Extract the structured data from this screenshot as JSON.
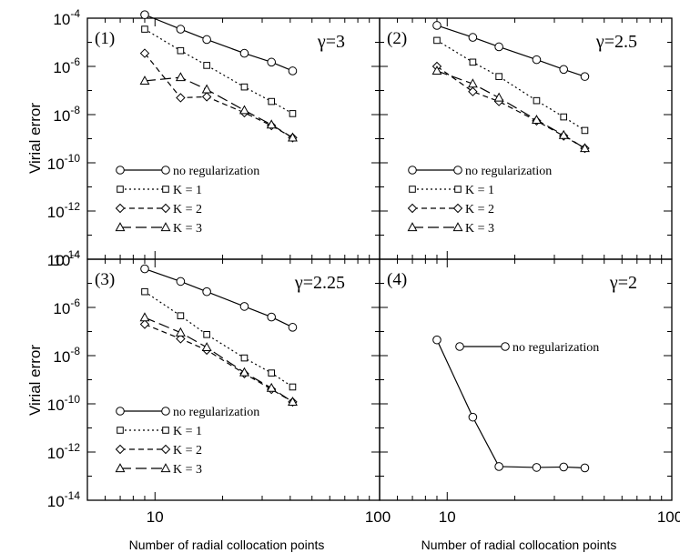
{
  "figure": {
    "ylabel": "Virial error",
    "xlabel": "Number of radial collocation points"
  },
  "chart_data": [
    {
      "type": "line",
      "panel_label": "(1)",
      "annotation": "γ=3",
      "xscale": "log",
      "yscale": "log",
      "xlim": [
        5,
        100
      ],
      "ylim": [
        1e-14,
        0.0001
      ],
      "series": [
        {
          "name": "no regularization",
          "marker": "circle",
          "dash": "solid",
          "x": [
            9,
            13,
            17,
            25,
            33,
            41
          ],
          "y": [
            0.00014,
            3.5e-05,
            1.3e-05,
            3.5e-06,
            1.5e-06,
            6.5e-07
          ]
        },
        {
          "name": "K = 1",
          "marker": "square",
          "dash": "dotted",
          "x": [
            9,
            13,
            17,
            25,
            33,
            41
          ],
          "y": [
            3.5e-05,
            4.5e-06,
            1.1e-06,
            1.4e-07,
            3.5e-08,
            1.1e-08
          ]
        },
        {
          "name": "K = 2",
          "marker": "diamond",
          "dash": "dashed",
          "x": [
            9,
            13,
            17,
            25,
            33,
            41
          ],
          "y": [
            3.5e-06,
            5e-08,
            5.5e-08,
            1.2e-08,
            3.5e-09,
            1.1e-09
          ]
        },
        {
          "name": "K = 3",
          "marker": "triangle",
          "dash": "longdash",
          "x": [
            9,
            13,
            17,
            25,
            33,
            41
          ],
          "y": [
            2.5e-07,
            3.5e-07,
            1.1e-07,
            1.5e-08,
            3.8e-09,
            1.1e-09
          ]
        }
      ],
      "xticks": [],
      "yticks": [
        "10-4",
        "10-6",
        "10-8",
        "10-10",
        "10-12",
        "10-14"
      ]
    },
    {
      "type": "line",
      "panel_label": "(2)",
      "annotation": "γ=2.5",
      "xscale": "log",
      "yscale": "log",
      "xlim": [
        5,
        100
      ],
      "ylim": [
        1e-14,
        0.0001
      ],
      "series": [
        {
          "name": "no regularization",
          "marker": "circle",
          "dash": "solid",
          "x": [
            9,
            13,
            17,
            25,
            33,
            41
          ],
          "y": [
            5e-05,
            1.6e-05,
            6.5e-06,
            1.9e-06,
            7.5e-07,
            3.8e-07
          ]
        },
        {
          "name": "K = 1",
          "marker": "square",
          "dash": "dotted",
          "x": [
            9,
            13,
            17,
            25,
            33,
            41
          ],
          "y": [
            1.2e-05,
            1.5e-06,
            3.8e-07,
            3.8e-08,
            8e-09,
            2.2e-09
          ]
        },
        {
          "name": "K = 2",
          "marker": "diamond",
          "dash": "dashed",
          "x": [
            9,
            13,
            17,
            25,
            33,
            41
          ],
          "y": [
            1e-06,
            9e-08,
            3.5e-08,
            5.5e-09,
            1.3e-09,
            4e-10
          ]
        },
        {
          "name": "K = 3",
          "marker": "triangle",
          "dash": "longdash",
          "x": [
            9,
            13,
            17,
            25,
            33,
            41
          ],
          "y": [
            6.5e-07,
            1.9e-07,
            5e-08,
            6e-09,
            1.4e-09,
            4e-10
          ]
        }
      ],
      "xticks": [],
      "yticks": []
    },
    {
      "type": "line",
      "panel_label": "(3)",
      "annotation": "γ=2.25",
      "xscale": "log",
      "yscale": "log",
      "xlim": [
        5,
        100
      ],
      "ylim": [
        1e-14,
        0.0001
      ],
      "series": [
        {
          "name": "no regularization",
          "marker": "circle",
          "dash": "solid",
          "x": [
            9,
            13,
            17,
            25,
            33,
            41
          ],
          "y": [
            4e-05,
            1.2e-05,
            4.5e-06,
            1.1e-06,
            4e-07,
            1.5e-07
          ]
        },
        {
          "name": "K = 1",
          "marker": "square",
          "dash": "dotted",
          "x": [
            9,
            13,
            17,
            25,
            33,
            41
          ],
          "y": [
            4.5e-06,
            4.5e-07,
            7.5e-08,
            8e-09,
            1.9e-09,
            5e-10
          ]
        },
        {
          "name": "K = 2",
          "marker": "diamond",
          "dash": "dashed",
          "x": [
            9,
            13,
            17,
            25,
            33,
            41
          ],
          "y": [
            2e-07,
            5e-08,
            1.7e-08,
            1.8e-09,
            4e-10,
            1.2e-10
          ]
        },
        {
          "name": "K = 3",
          "marker": "triangle",
          "dash": "longdash",
          "x": [
            9,
            13,
            17,
            25,
            33,
            41
          ],
          "y": [
            3.8e-07,
            9e-08,
            2.2e-08,
            2e-09,
            4.5e-10,
            1.2e-10
          ]
        }
      ],
      "xticks": [
        "10",
        "100"
      ],
      "yticks": [
        "10-4",
        "10-6",
        "10-8",
        "10-10",
        "10-12",
        "10-14"
      ]
    },
    {
      "type": "line",
      "panel_label": "(4)",
      "annotation": "γ=2",
      "xscale": "log",
      "yscale": "log",
      "xlim": [
        5,
        100
      ],
      "ylim": [
        1e-14,
        0.0001
      ],
      "series": [
        {
          "name": "no regularization",
          "marker": "circle",
          "dash": "solid",
          "x": [
            9,
            13,
            17,
            25,
            33,
            41
          ],
          "y": [
            4.5e-08,
            2.8e-11,
            2.5e-13,
            2.3e-13,
            2.4e-13,
            2.2e-13
          ]
        }
      ],
      "xticks": [
        "10",
        "100"
      ],
      "yticks": []
    }
  ]
}
